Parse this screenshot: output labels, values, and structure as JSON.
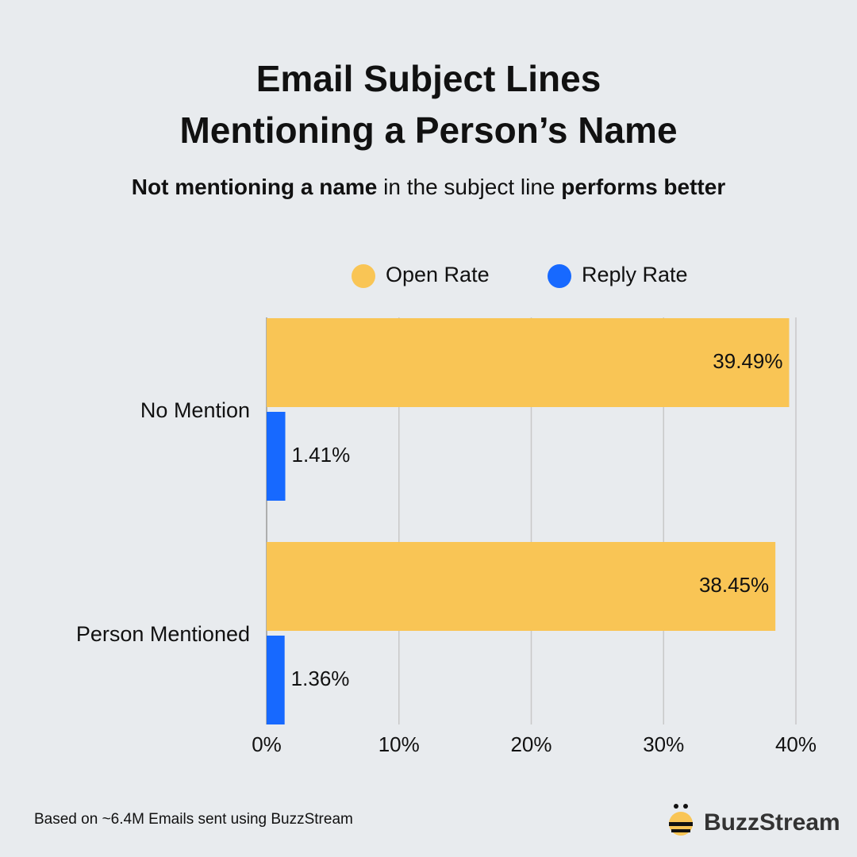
{
  "chart_data": {
    "type": "hbar",
    "title": [
      "Email Subject Lines",
      "Mentioning a Person’s Name"
    ],
    "subtitle": [
      {
        "text": "Not mentioning a name",
        "bold": true
      },
      {
        "text": " in the subject line ",
        "bold": false
      },
      {
        "text": "performs better",
        "bold": true
      }
    ],
    "categories": [
      "No Mention",
      "Person Mentioned"
    ],
    "series": [
      {
        "name": "Open Rate",
        "color": "#F9C555",
        "values": [
          39.49,
          38.45
        ],
        "value_labels": [
          "39.49%",
          "38.45%"
        ]
      },
      {
        "name": "Reply Rate",
        "color": "#1769FF",
        "values": [
          1.41,
          1.36
        ],
        "value_labels": [
          "1.41%",
          "1.36%"
        ]
      }
    ],
    "xlim": [
      0,
      40
    ],
    "xticks": [
      {
        "value": 0,
        "label": "0%"
      },
      {
        "value": 10,
        "label": "10%"
      },
      {
        "value": 20,
        "label": "20%"
      },
      {
        "value": 30,
        "label": "30%"
      },
      {
        "value": 40,
        "label": "40%"
      }
    ],
    "grid": true,
    "footnote": "Based on ~6.4M Emails sent using BuzzStream",
    "brand": "BuzzStream"
  }
}
